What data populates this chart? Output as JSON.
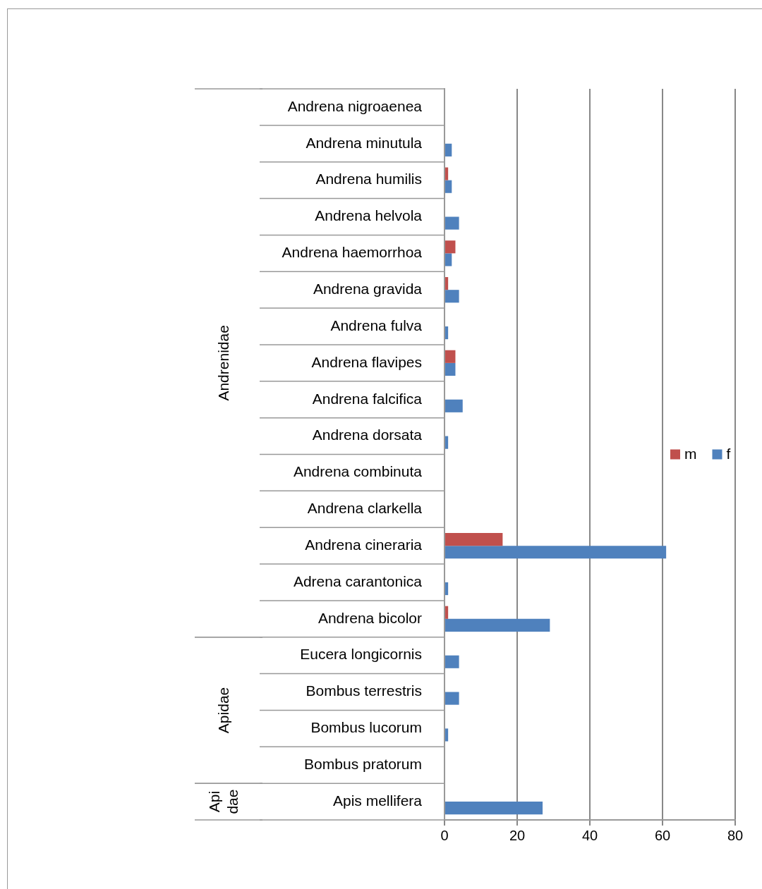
{
  "chart_data": {
    "type": "bar",
    "orientation": "horizontal",
    "categories": [
      "Andrena nigroaenea",
      "Andrena minutula",
      "Andrena humilis",
      "Andrena helvola",
      "Andrena haemorrhoa",
      "Andrena gravida",
      "Andrena fulva",
      "Andrena flavipes",
      "Andrena falcifica",
      "Andrena dorsata",
      "Andrena combinuta",
      "Andrena clarkella",
      "Andrena cineraria",
      "Adrena carantonica",
      "Andrena bicolor",
      "Eucera longicornis",
      "Bombus terrestris",
      "Bombus lucorum",
      "Bombus pratorum",
      "Apis mellifera"
    ],
    "series": [
      {
        "name": "m",
        "color": "#c0504d",
        "values": [
          0,
          0,
          1,
          0,
          3,
          1,
          0,
          3,
          0,
          0,
          0,
          0,
          16,
          0,
          1,
          0,
          0,
          0,
          0,
          0
        ]
      },
      {
        "name": "f",
        "color": "#4f81bd",
        "values": [
          0,
          2,
          2,
          4,
          2,
          4,
          1,
          3,
          5,
          1,
          0,
          0,
          61,
          1,
          29,
          4,
          4,
          1,
          0,
          27
        ]
      }
    ],
    "xlim": [
      0,
      80
    ],
    "xticks": [
      0,
      20,
      40,
      60,
      80
    ],
    "grid": "x",
    "legend": "right",
    "annotations": [
      "Andrenidae",
      "Apidae",
      "Api dae"
    ]
  }
}
